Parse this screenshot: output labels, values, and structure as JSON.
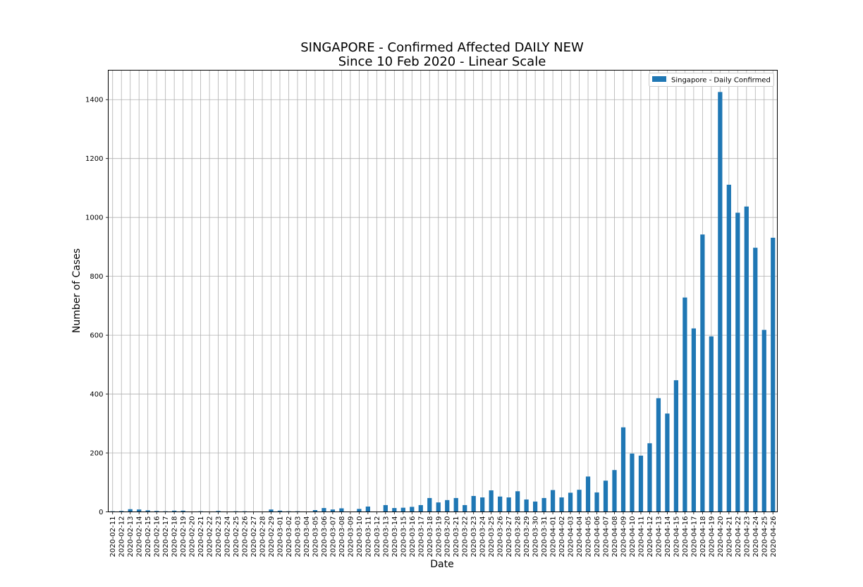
{
  "chart_data": {
    "type": "bar",
    "title_line1": "SINGAPORE - Confirmed Affected DAILY NEW",
    "title_line2": "Since 10 Feb 2020 - Linear Scale",
    "xlabel": "Date",
    "ylabel": "Number of Cases",
    "ylim": [
      0,
      1500
    ],
    "yticks": [
      0,
      200,
      400,
      600,
      800,
      1000,
      1200,
      1400
    ],
    "grid": true,
    "legend_position": "top-right",
    "bar_color": "#1f77b4",
    "categories": [
      "2020-02-11",
      "2020-02-12",
      "2020-02-13",
      "2020-02-14",
      "2020-02-15",
      "2020-02-16",
      "2020-02-17",
      "2020-02-18",
      "2020-02-19",
      "2020-02-20",
      "2020-02-21",
      "2020-02-22",
      "2020-02-23",
      "2020-02-24",
      "2020-02-25",
      "2020-02-26",
      "2020-02-27",
      "2020-02-28",
      "2020-02-29",
      "2020-03-01",
      "2020-03-02",
      "2020-03-03",
      "2020-03-04",
      "2020-03-05",
      "2020-03-06",
      "2020-03-07",
      "2020-03-08",
      "2020-03-09",
      "2020-03-10",
      "2020-03-11",
      "2020-03-12",
      "2020-03-13",
      "2020-03-14",
      "2020-03-15",
      "2020-03-16",
      "2020-03-17",
      "2020-03-18",
      "2020-03-19",
      "2020-03-20",
      "2020-03-21",
      "2020-03-22",
      "2020-03-23",
      "2020-03-24",
      "2020-03-25",
      "2020-03-26",
      "2020-03-27",
      "2020-03-28",
      "2020-03-29",
      "2020-03-30",
      "2020-03-31",
      "2020-04-01",
      "2020-04-02",
      "2020-04-03",
      "2020-04-04",
      "2020-04-05",
      "2020-04-06",
      "2020-04-07",
      "2020-04-08",
      "2020-04-09",
      "2020-04-10",
      "2020-04-11",
      "2020-04-12",
      "2020-04-13",
      "2020-04-14",
      "2020-04-15",
      "2020-04-16",
      "2020-04-17",
      "2020-04-18",
      "2020-04-19",
      "2020-04-20",
      "2020-04-21",
      "2020-04-22",
      "2020-04-23",
      "2020-04-24",
      "2020-04-25",
      "2020-04-26"
    ],
    "series": [
      {
        "name": "Singapore - Daily Confirmed",
        "values": [
          2,
          3,
          9,
          8,
          5,
          3,
          2,
          4,
          4,
          1,
          2,
          0,
          3,
          0,
          2,
          2,
          0,
          0,
          8,
          4,
          2,
          2,
          0,
          6,
          13,
          8,
          12,
          0,
          10,
          18,
          0,
          23,
          13,
          14,
          17,
          23,
          47,
          32,
          40,
          47,
          23,
          54,
          49,
          73,
          52,
          49,
          70,
          42,
          35,
          47,
          74,
          49,
          65,
          75,
          120,
          66,
          106,
          142,
          287,
          198,
          191,
          233,
          386,
          334,
          447,
          728,
          623,
          942,
          596,
          1426,
          1111,
          1016,
          1037,
          897,
          618,
          931
        ]
      }
    ]
  }
}
